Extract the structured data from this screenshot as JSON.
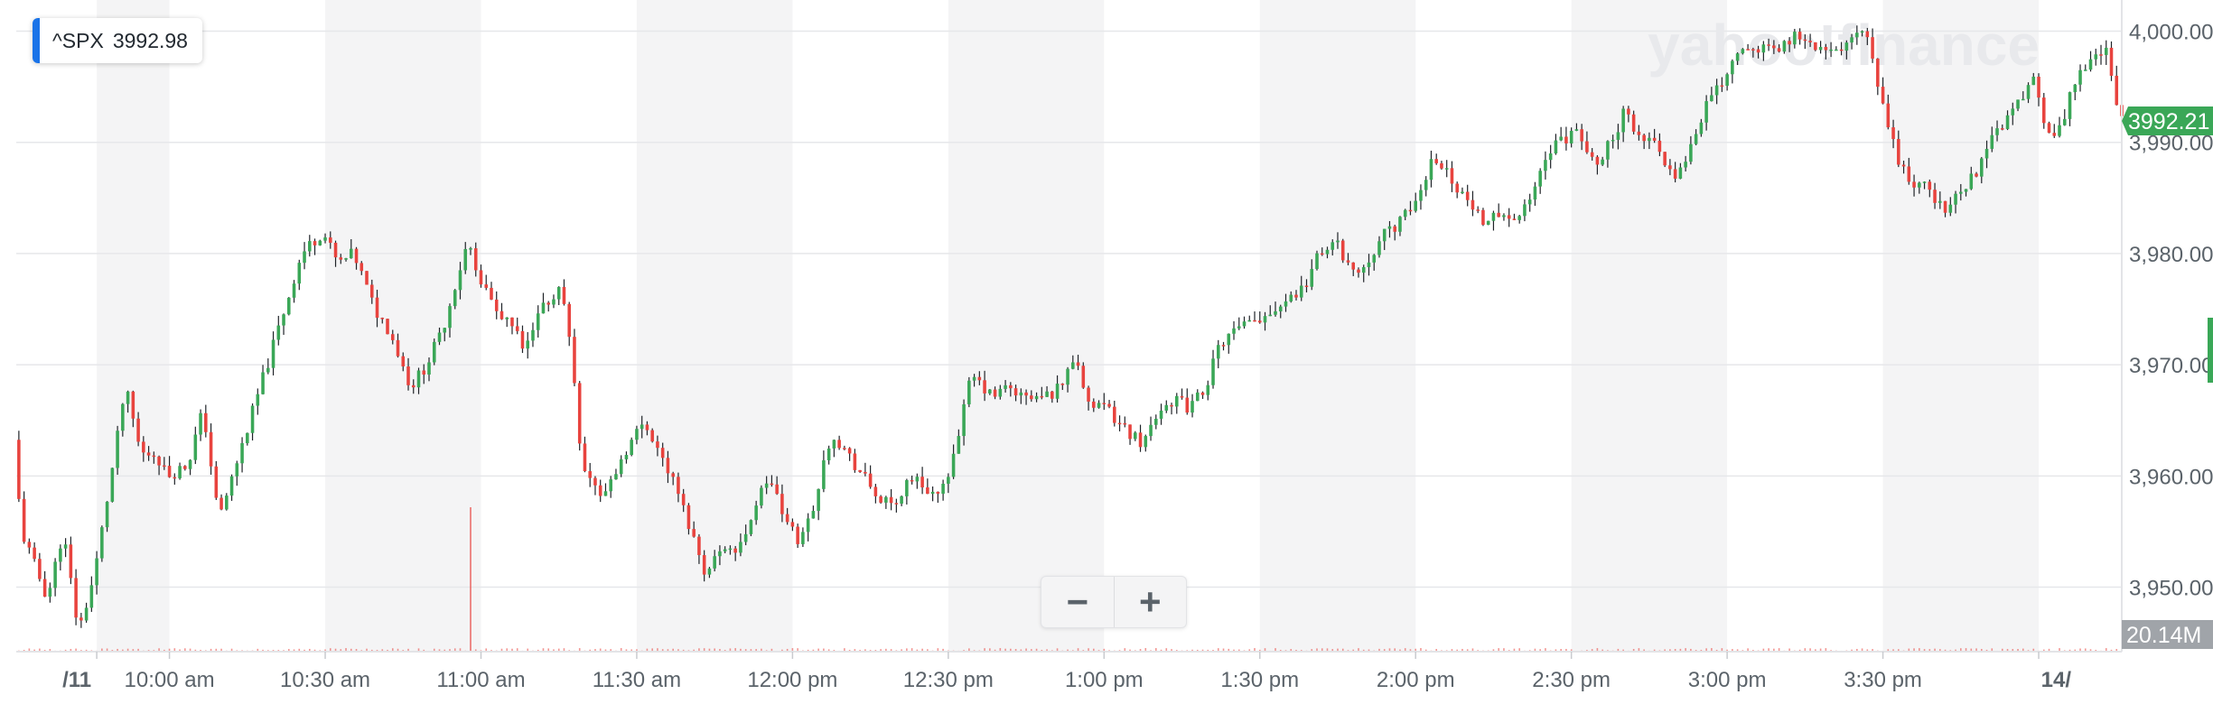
{
  "badge": {
    "symbol": "^SPX",
    "value": "3992.98"
  },
  "watermark": "yahoo!finance",
  "price_tag": {
    "label": "3992.21",
    "color": "#3aa757"
  },
  "volume_tag": {
    "label": "20.14M",
    "color": "#a0a4a9"
  },
  "zoom": {
    "out_label": "−",
    "in_label": "+"
  },
  "colors": {
    "up": "#3aa757",
    "down": "#e8433e",
    "volume": "#e8433e",
    "band": "#f4f4f5"
  },
  "chart_data": {
    "type": "candlestick",
    "symbol": "^SPX",
    "y_ticks": [
      "4,000.00",
      "3,990.00",
      "3,980.00",
      "3,970.00",
      "3,960.00",
      "3,950.00"
    ],
    "y_tick_values": [
      4000,
      3990,
      3980,
      3970,
      3960,
      3950
    ],
    "ylim": [
      3944.2,
      4002.8
    ],
    "x_ticks": [
      "/11",
      "10:00 am",
      "10:30 am",
      "11:00 am",
      "11:30 am",
      "12:00 pm",
      "12:30 pm",
      "1:00 pm",
      "1:30 pm",
      "2:00 pm",
      "2:30 pm",
      "3:00 pm",
      "3:30 pm",
      "14/"
    ],
    "x_tick_minutes": [
      -14,
      0,
      30,
      60,
      90,
      120,
      150,
      180,
      210,
      240,
      270,
      300,
      330,
      360
    ],
    "xlim_minutes": [
      -29.5,
      376
    ],
    "grid": true,
    "last_price": 3992.21,
    "volume_label": "20.14M",
    "volume_spike_minute": 58,
    "anchors": [
      [
        -30,
        3966
      ],
      [
        -28,
        3955
      ],
      [
        -23,
        3949
      ],
      [
        -20,
        3955
      ],
      [
        -17,
        3946
      ],
      [
        -14,
        3951
      ],
      [
        -10,
        3962
      ],
      [
        -8,
        3968
      ],
      [
        -5,
        3962
      ],
      [
        -2,
        3962
      ],
      [
        0,
        3960
      ],
      [
        4,
        3961
      ],
      [
        7,
        3966
      ],
      [
        10,
        3956
      ],
      [
        14,
        3962
      ],
      [
        18,
        3968
      ],
      [
        22,
        3974
      ],
      [
        26,
        3980
      ],
      [
        30,
        3982
      ],
      [
        33,
        3979
      ],
      [
        36,
        3980
      ],
      [
        40,
        3975
      ],
      [
        43,
        3973
      ],
      [
        47,
        3968
      ],
      [
        50,
        3970
      ],
      [
        53,
        3973
      ],
      [
        56,
        3978
      ],
      [
        58,
        3981
      ],
      [
        61,
        3977
      ],
      [
        64,
        3974
      ],
      [
        66,
        3974
      ],
      [
        69,
        3971
      ],
      [
        72,
        3975
      ],
      [
        76,
        3977
      ],
      [
        78,
        3971
      ],
      [
        80,
        3961
      ],
      [
        84,
        3958
      ],
      [
        88,
        3962
      ],
      [
        92,
        3965
      ],
      [
        95,
        3962
      ],
      [
        98,
        3959
      ],
      [
        101,
        3955
      ],
      [
        104,
        3951
      ],
      [
        107,
        3954
      ],
      [
        110,
        3953
      ],
      [
        113,
        3957
      ],
      [
        116,
        3960
      ],
      [
        119,
        3956
      ],
      [
        122,
        3954
      ],
      [
        125,
        3958
      ],
      [
        128,
        3964
      ],
      [
        131,
        3962
      ],
      [
        134,
        3960
      ],
      [
        137,
        3958
      ],
      [
        140,
        3957
      ],
      [
        143,
        3960
      ],
      [
        146,
        3959
      ],
      [
        149,
        3958
      ],
      [
        152,
        3963
      ],
      [
        155,
        3969
      ],
      [
        159,
        3967
      ],
      [
        162,
        3968
      ],
      [
        165,
        3967
      ],
      [
        169,
        3967
      ],
      [
        172,
        3968
      ],
      [
        175,
        3971
      ],
      [
        178,
        3966
      ],
      [
        181,
        3966
      ],
      [
        185,
        3964
      ],
      [
        188,
        3963
      ],
      [
        191,
        3966
      ],
      [
        194,
        3967
      ],
      [
        197,
        3966
      ],
      [
        200,
        3968
      ],
      [
        203,
        3972
      ],
      [
        206,
        3973
      ],
      [
        210,
        3974
      ],
      [
        213,
        3975
      ],
      [
        216,
        3976
      ],
      [
        219,
        3977
      ],
      [
        222,
        3980
      ],
      [
        225,
        3981
      ],
      [
        229,
        3978
      ],
      [
        232,
        3980
      ],
      [
        235,
        3982
      ],
      [
        238,
        3983
      ],
      [
        241,
        3985
      ],
      [
        244,
        3989
      ],
      [
        247,
        3987
      ],
      [
        250,
        3985
      ],
      [
        253,
        3983
      ],
      [
        256,
        3984
      ],
      [
        259,
        3983
      ],
      [
        262,
        3984
      ],
      [
        265,
        3988
      ],
      [
        268,
        3990
      ],
      [
        271,
        3991
      ],
      [
        275,
        3988
      ],
      [
        278,
        3990
      ],
      [
        281,
        3993
      ],
      [
        284,
        3990
      ],
      [
        287,
        3990
      ],
      [
        290,
        3987
      ],
      [
        293,
        3989
      ],
      [
        296,
        3993
      ],
      [
        299,
        3995
      ],
      [
        302,
        3998
      ],
      [
        305,
        3999
      ],
      [
        309,
        3998
      ],
      [
        312,
        3999
      ],
      [
        315,
        4000
      ],
      [
        318,
        3998
      ],
      [
        321,
        3998
      ],
      [
        324,
        3999
      ],
      [
        327,
        4000
      ],
      [
        330,
        3994
      ],
      [
        333,
        3989
      ],
      [
        336,
        3986
      ],
      [
        339,
        3986
      ],
      [
        342,
        3984
      ],
      [
        345,
        3985
      ],
      [
        348,
        3987
      ],
      [
        351,
        3990
      ],
      [
        354,
        3992
      ],
      [
        357,
        3994
      ],
      [
        360,
        3996
      ],
      [
        362,
        3990
      ],
      [
        365,
        3992
      ],
      [
        368,
        3996
      ],
      [
        371,
        3998
      ],
      [
        374,
        3998
      ],
      [
        376,
        3992
      ]
    ]
  }
}
